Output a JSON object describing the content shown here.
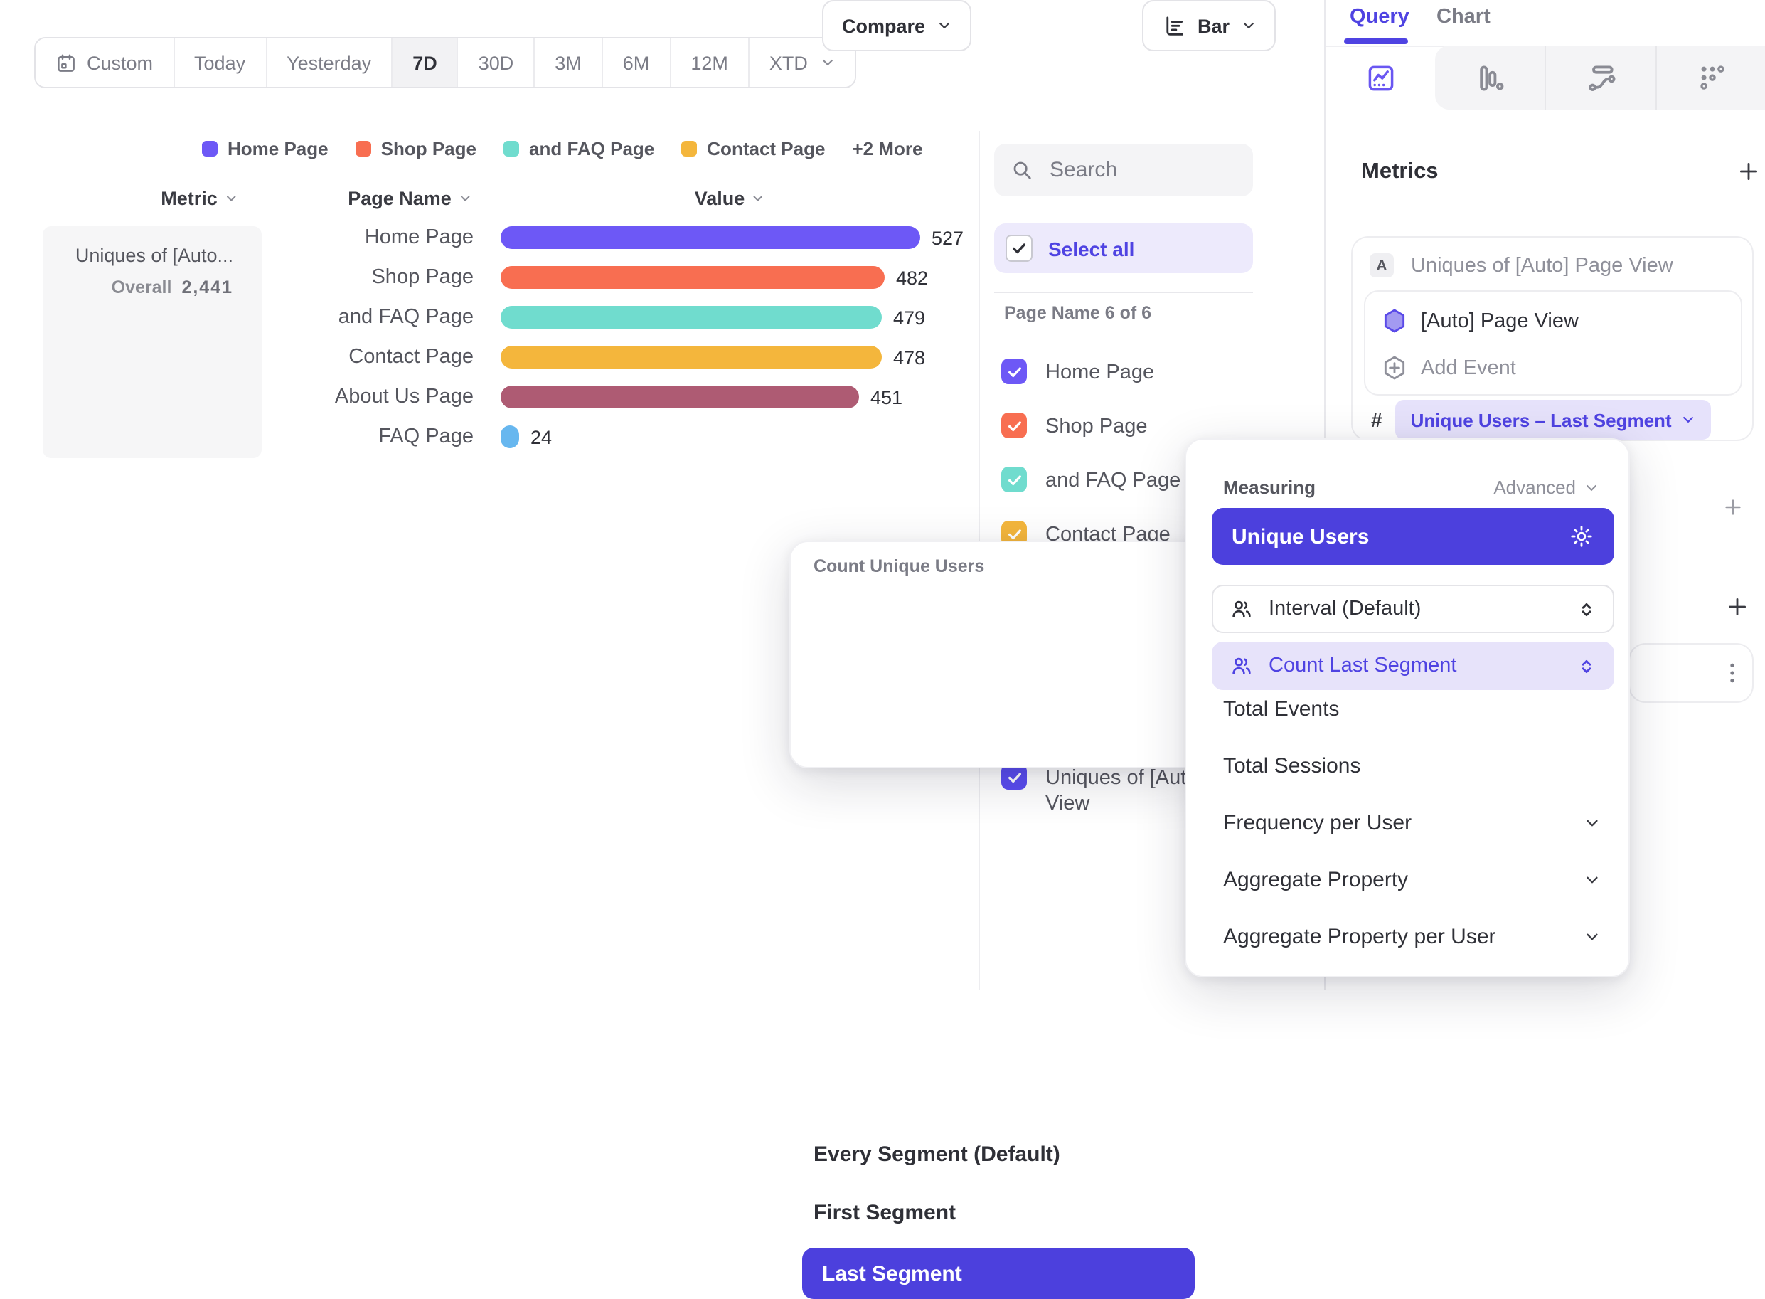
{
  "toolbar": {
    "date_ranges": [
      {
        "label": "Custom",
        "icon": "calendar-icon"
      },
      {
        "label": "Today"
      },
      {
        "label": "Yesterday"
      },
      {
        "label": "7D"
      },
      {
        "label": "30D"
      },
      {
        "label": "3M"
      },
      {
        "label": "6M"
      },
      {
        "label": "12M"
      },
      {
        "label": "XTD",
        "chevron": true
      }
    ],
    "active_range": "7D",
    "compare_label": "Compare",
    "chart_type_label": "Bar"
  },
  "legend": {
    "items": [
      {
        "label": "Home Page",
        "color": "#6d58f6"
      },
      {
        "label": "Shop Page",
        "color": "#f86e51"
      },
      {
        "label": "and FAQ Page",
        "color": "#70dcce"
      },
      {
        "label": "Contact Page",
        "color": "#f4b63c"
      }
    ],
    "more_label": "+2 More"
  },
  "table": {
    "headers": [
      "Metric",
      "Page Name",
      "Value"
    ]
  },
  "metric_box": {
    "title": "Uniques of [Auto...",
    "overall_label": "Overall",
    "overall_value": "2,441"
  },
  "chart_data": {
    "type": "bar",
    "orientation": "horizontal",
    "series_name": "Uniques of [Auto] Page View",
    "categories": [
      "Home Page",
      "Shop Page",
      "and FAQ Page",
      "Contact Page",
      "About Us Page",
      "FAQ Page"
    ],
    "values": [
      527,
      482,
      479,
      478,
      451,
      24
    ],
    "colors": [
      "#6d58f6",
      "#f86e51",
      "#70dcce",
      "#f4b63c",
      "#ae5b73",
      "#67b7ef"
    ],
    "value_labels_shown": true,
    "overall_total": 2441,
    "legend_position": "top",
    "grid": false
  },
  "filter_panel": {
    "search_placeholder": "Search",
    "select_all_label": "Select all",
    "group_label": "Page Name 6 of 6",
    "page_items": [
      {
        "label": "Home Page",
        "color": "#6d58f6",
        "checked": true
      },
      {
        "label": "Shop Page",
        "color": "#f86e51",
        "checked": true
      },
      {
        "label": "and FAQ Page",
        "color": "#70dcce",
        "checked": true
      },
      {
        "label": "Contact Page",
        "color": "#f4b63c",
        "checked": true
      },
      {
        "label": "About Us Page",
        "color": "#ae5b73",
        "checked": true
      },
      {
        "label": "FAQ Page",
        "color": "#67b7ef",
        "checked": true
      }
    ],
    "metric_item": {
      "label": "Uniques of [Auto] Page View",
      "color": "#5a4cf0",
      "checked": true
    }
  },
  "segment_menu": {
    "title": "Count Unique Users",
    "options": [
      "Every Segment (Default)",
      "First Segment",
      "Last Segment"
    ],
    "selected": "Last Segment"
  },
  "sidebar": {
    "tabs": {
      "query": "Query",
      "chart": "Chart",
      "active": "Query"
    },
    "report_tabs": [
      {
        "icon": "insights-icon",
        "active": true
      },
      {
        "icon": "funnels-icon",
        "active": false
      },
      {
        "icon": "flows-icon",
        "active": false
      },
      {
        "icon": "retention-icon",
        "active": false
      }
    ],
    "metrics": {
      "header": "Metrics",
      "series_letter": "A",
      "series_title": "Uniques of [Auto] Page View",
      "event_name": "[Auto] Page View",
      "add_event_label": "Add Event",
      "hash_symbol": "#",
      "measurement_pill": "Unique Users – Last Segment"
    }
  },
  "measuring_menu": {
    "title": "Measuring",
    "advanced_label": "Advanced",
    "selected_label": "Unique Users",
    "sub_rows": [
      {
        "label": "Interval (Default)",
        "active": false
      },
      {
        "label": "Count Last Segment",
        "active": true
      }
    ],
    "options": [
      {
        "label": "Total Events",
        "chevron": false
      },
      {
        "label": "Total Sessions",
        "chevron": false
      },
      {
        "label": "Frequency per User",
        "chevron": true
      },
      {
        "label": "Aggregate Property",
        "chevron": true
      },
      {
        "label": "Aggregate Property per User",
        "chevron": true
      }
    ]
  }
}
